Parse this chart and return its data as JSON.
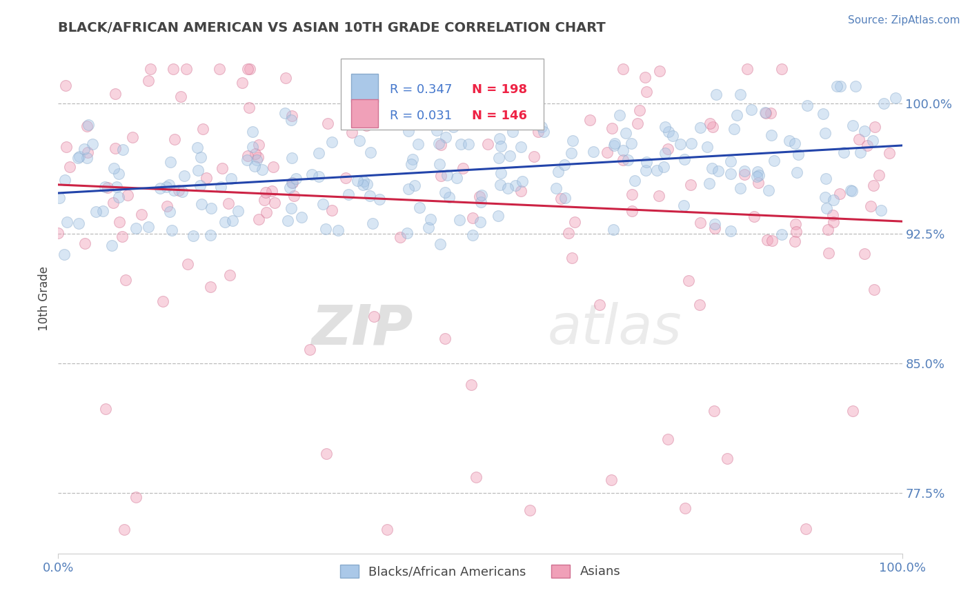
{
  "title": "BLACK/AFRICAN AMERICAN VS ASIAN 10TH GRADE CORRELATION CHART",
  "source_text": "Source: ZipAtlas.com",
  "ylabel": "10th Grade",
  "xlim": [
    0,
    1
  ],
  "ylim": [
    0.74,
    1.035
  ],
  "yticks": [
    0.775,
    0.85,
    0.925,
    1.0
  ],
  "ytick_labels": [
    "77.5%",
    "85.0%",
    "92.5%",
    "100.0%"
  ],
  "xticks": [
    0.0,
    1.0
  ],
  "xtick_labels": [
    "0.0%",
    "100.0%"
  ],
  "blue_color": "#aac8e8",
  "blue_edge_color": "#88aacc",
  "pink_color": "#f0a0b8",
  "pink_edge_color": "#d07090",
  "blue_line_color": "#2244aa",
  "pink_line_color": "#cc2244",
  "legend_blue_R": "R = 0.347",
  "legend_blue_N": "N = 198",
  "legend_pink_R": "R = 0.031",
  "legend_pink_N": "N = 146",
  "R_blue": 0.347,
  "N_blue": 198,
  "R_pink": 0.031,
  "N_pink": 146,
  "watermark_zip": "ZIP",
  "watermark_atlas": "atlas",
  "marker_size": 130,
  "alpha_blue": 0.45,
  "alpha_pink": 0.45,
  "grid_color": "#bbbbbb",
  "title_color": "#444444",
  "tick_label_color": "#5580bb",
  "legend_R_color": "#4477cc",
  "legend_N_color": "#ee2244",
  "background_color": "#ffffff"
}
